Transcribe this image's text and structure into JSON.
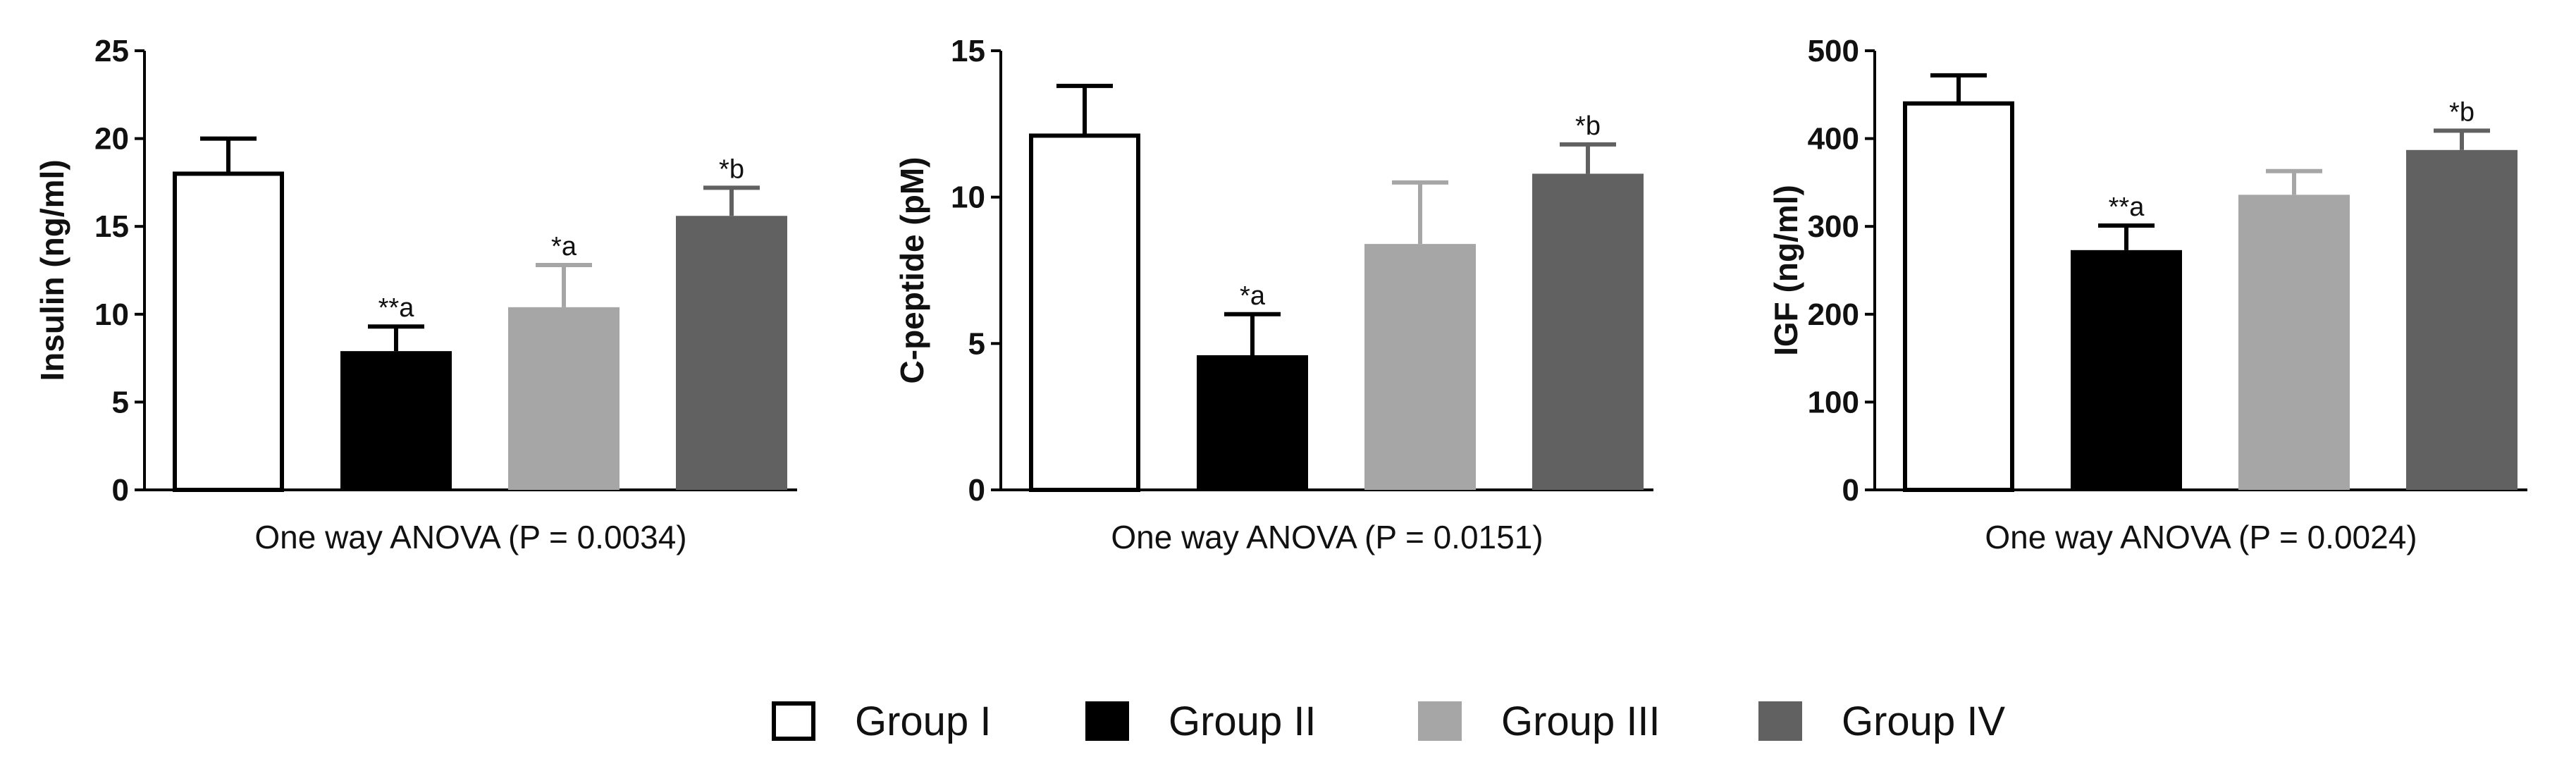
{
  "legend": {
    "items": [
      {
        "label": "Group I",
        "fill": "#ffffff",
        "stroke": "#000000"
      },
      {
        "label": "Group II",
        "fill": "#000000",
        "stroke": "#000000"
      },
      {
        "label": "Group III",
        "fill": "#a6a6a6",
        "stroke": "#a6a6a6"
      },
      {
        "label": "Group IV",
        "fill": "#616161",
        "stroke": "#616161"
      }
    ]
  },
  "chart_data": [
    {
      "type": "bar",
      "title": "",
      "xlabel": "One way ANOVA (P = 0.0034)",
      "ylabel": "Insulin (ng/ml)",
      "ylim": [
        0,
        25
      ],
      "yticks": [
        0,
        5,
        10,
        15,
        20,
        25
      ],
      "grid": false,
      "categories": [
        "Group I",
        "Group II",
        "Group III",
        "Group IV"
      ],
      "values": [
        18.0,
        7.9,
        10.4,
        15.6
      ],
      "errors": [
        2.0,
        1.4,
        2.4,
        1.6
      ],
      "annotations": [
        "",
        "**a",
        "*a",
        "*b"
      ]
    },
    {
      "type": "bar",
      "title": "",
      "xlabel": "One way ANOVA (P = 0.0151)",
      "ylabel": "C-peptide (pM)",
      "ylim": [
        0,
        15
      ],
      "yticks": [
        0,
        5,
        10,
        15
      ],
      "grid": false,
      "categories": [
        "Group I",
        "Group II",
        "Group III",
        "Group IV"
      ],
      "values": [
        12.1,
        4.6,
        8.4,
        10.8
      ],
      "errors": [
        1.7,
        1.4,
        2.1,
        1.0
      ],
      "annotations": [
        "",
        "*a",
        "",
        "*b"
      ]
    },
    {
      "type": "bar",
      "title": "",
      "xlabel": "One way ANOVA (P = 0.0024)",
      "ylabel": "IGF (ng/ml)",
      "ylim": [
        0,
        500
      ],
      "yticks": [
        0,
        100,
        200,
        300,
        400,
        500
      ],
      "grid": false,
      "categories": [
        "Group I",
        "Group II",
        "Group III",
        "Group IV"
      ],
      "values": [
        440,
        273,
        336,
        387
      ],
      "errors": [
        32,
        28,
        27,
        22
      ],
      "annotations": [
        "",
        "**a",
        "",
        "*b"
      ]
    }
  ]
}
